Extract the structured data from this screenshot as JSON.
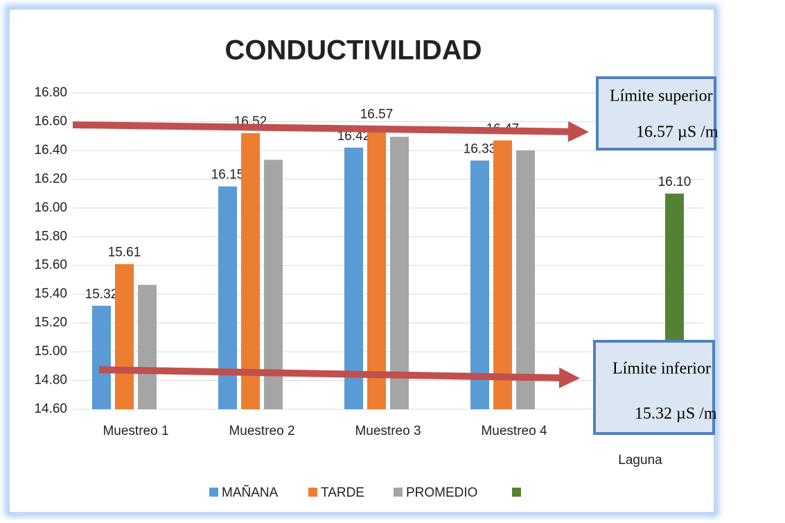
{
  "chart_data": {
    "type": "bar",
    "title": "CONDUCTIVILIDAD",
    "categories": [
      "Muestreo 1",
      "Muestreo 2",
      "Muestreo 3",
      "Muestreo 4",
      "Promedio Laguna"
    ],
    "series": [
      {
        "name": "MAÑANA",
        "color": "#5b9bd5",
        "values": [
          15.32,
          16.15,
          16.42,
          16.33,
          null
        ],
        "value_labels": [
          "15.32",
          "16.15",
          "16.42",
          "16.33",
          null
        ]
      },
      {
        "name": "TARDE",
        "color": "#ed7d31",
        "values": [
          15.61,
          16.52,
          16.57,
          16.47,
          null
        ],
        "value_labels": [
          "15.61",
          "16.52",
          "16.57",
          "16.47",
          null
        ]
      },
      {
        "name": "PROMEDIO",
        "color": "#a5a5a5",
        "values": [
          15.465,
          16.335,
          16.495,
          16.4,
          null
        ]
      },
      {
        "color": "#548235",
        "values": [
          null,
          null,
          null,
          null,
          16.1
        ],
        "value_labels": [
          null,
          null,
          null,
          null,
          "16.10"
        ]
      }
    ],
    "ylim": [
      14.6,
      16.8
    ],
    "yticks": [
      {
        "value": 14.6,
        "label": "14.60"
      },
      {
        "value": 14.8,
        "label": "14.80"
      },
      {
        "value": 15.0,
        "label": "15.00"
      },
      {
        "value": 15.2,
        "label": "15.20"
      },
      {
        "value": 15.4,
        "label": "15.40"
      },
      {
        "value": 15.6,
        "label": "15.60"
      },
      {
        "value": 15.8,
        "label": "15.80"
      },
      {
        "value": 16.0,
        "label": "16.00"
      },
      {
        "value": 16.2,
        "label": "16.20"
      },
      {
        "value": 16.4,
        "label": "16.40"
      },
      {
        "value": 16.6,
        "label": "16.60"
      },
      {
        "value": 16.8,
        "label": "16.80"
      }
    ],
    "grid": true,
    "legend": "bottom",
    "annotations": [
      {
        "title": "Límite superior",
        "text": "16.57 µS /m"
      },
      {
        "title": "Límite inferior",
        "text": "15.32 µS /m"
      }
    ]
  }
}
